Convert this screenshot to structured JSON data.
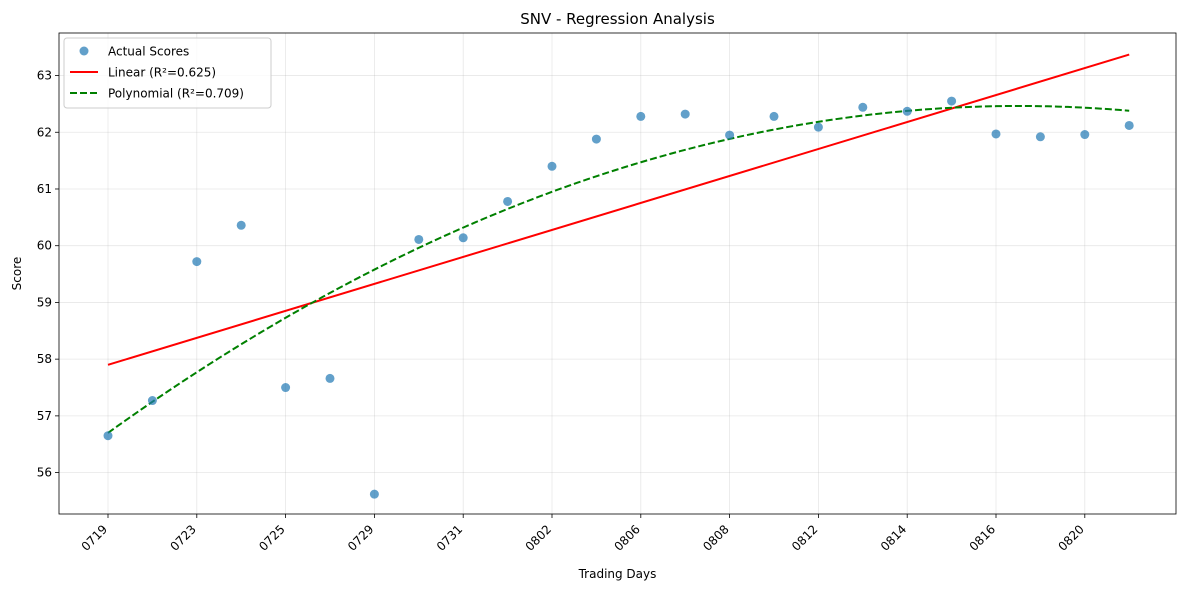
{
  "chart_data": {
    "type": "scatter",
    "title": "SNV - Regression Analysis",
    "xlabel": "Trading Days",
    "ylabel": "Score",
    "x_tick_labels": [
      "0719",
      "0723",
      "0725",
      "0729",
      "0731",
      "0802",
      "0806",
      "0808",
      "0812",
      "0814",
      "0816",
      "0820"
    ],
    "y_ticks": [
      56,
      57,
      58,
      59,
      60,
      61,
      62,
      63
    ],
    "ylim": [
      55.27,
      63.75
    ],
    "grid": true,
    "legend_position": "top-left",
    "series": [
      {
        "name": "Actual Scores",
        "kind": "scatter",
        "color": "#1f77b4",
        "x": [
          0,
          1,
          2,
          3,
          4,
          5,
          6,
          7,
          8,
          9,
          10,
          11,
          12,
          13,
          14,
          15,
          16,
          17,
          18,
          19,
          20,
          21,
          22,
          23
        ],
        "values": [
          56.65,
          57.27,
          59.72,
          60.36,
          57.5,
          57.66,
          55.62,
          60.11,
          60.14,
          60.78,
          61.4,
          61.88,
          62.28,
          62.32,
          61.95,
          62.28,
          62.09,
          62.44,
          62.37,
          62.55,
          61.97,
          61.92,
          61.96,
          62.12
        ]
      },
      {
        "name": "Linear (R²=0.625)",
        "kind": "line",
        "color": "#ff0000",
        "style": "solid",
        "intercept": 57.9,
        "slope": 0.2378
      },
      {
        "name": "Polynomial (R²=0.709)",
        "kind": "line",
        "color": "#008000",
        "style": "dashed",
        "coefficients": [
          56.7,
          0.562,
          -0.0137
        ]
      }
    ]
  }
}
